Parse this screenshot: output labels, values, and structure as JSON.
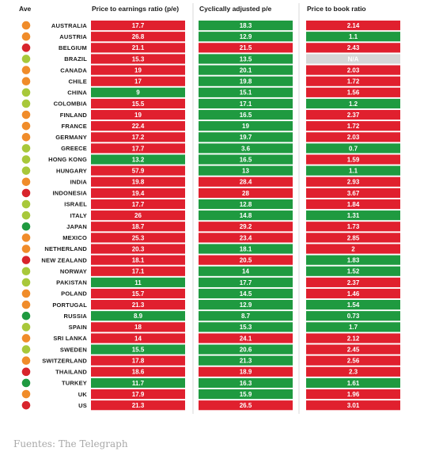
{
  "chart_data": {
    "type": "table",
    "headers": {
      "ave": "Ave",
      "pe": "Price to earnings ratio (p/e)",
      "cape": "Cyclically adjusted p/e",
      "pb": "Price to book ratio"
    },
    "colors": {
      "red": "#e0202e",
      "green": "#1f9a40",
      "na": "#d6d6d6",
      "dot_orange": "#f08c2a",
      "dot_green": "#a8c83a",
      "dot_red": "#d8242c",
      "dot_dark_green": "#1f9a40"
    },
    "rows": [
      {
        "country": "AUSTRALIA",
        "ave": "orange",
        "pe": "17.7",
        "pe_c": "red",
        "cape": "18.3",
        "cape_c": "green",
        "pb": "2.14",
        "pb_c": "red"
      },
      {
        "country": "AUSTRIA",
        "ave": "orange",
        "pe": "26.8",
        "pe_c": "red",
        "cape": "12.9",
        "cape_c": "green",
        "pb": "1.1",
        "pb_c": "green"
      },
      {
        "country": "BELGIUM",
        "ave": "red",
        "pe": "21.1",
        "pe_c": "red",
        "cape": "21.5",
        "cape_c": "red",
        "pb": "2.43",
        "pb_c": "red"
      },
      {
        "country": "BRAZIL",
        "ave": "green",
        "pe": "15.3",
        "pe_c": "red",
        "cape": "13.5",
        "cape_c": "green",
        "pb": "N/A",
        "pb_c": "na"
      },
      {
        "country": "CANADA",
        "ave": "orange",
        "pe": "19",
        "pe_c": "red",
        "cape": "20.1",
        "cape_c": "green",
        "pb": "2.03",
        "pb_c": "red"
      },
      {
        "country": "CHILE",
        "ave": "orange",
        "pe": "17",
        "pe_c": "red",
        "cape": "19.8",
        "cape_c": "green",
        "pb": "1.72",
        "pb_c": "red"
      },
      {
        "country": "CHINA",
        "ave": "green",
        "pe": "9",
        "pe_c": "green",
        "cape": "15.1",
        "cape_c": "green",
        "pb": "1.56",
        "pb_c": "red"
      },
      {
        "country": "COLOMBIA",
        "ave": "green",
        "pe": "15.5",
        "pe_c": "red",
        "cape": "17.1",
        "cape_c": "green",
        "pb": "1.2",
        "pb_c": "green"
      },
      {
        "country": "FINLAND",
        "ave": "orange",
        "pe": "19",
        "pe_c": "red",
        "cape": "16.5",
        "cape_c": "green",
        "pb": "2.37",
        "pb_c": "red"
      },
      {
        "country": "FRANCE",
        "ave": "orange",
        "pe": "22.4",
        "pe_c": "red",
        "cape": "19",
        "cape_c": "green",
        "pb": "1.72",
        "pb_c": "red"
      },
      {
        "country": "GERMANY",
        "ave": "orange",
        "pe": "17.2",
        "pe_c": "red",
        "cape": "19.7",
        "cape_c": "green",
        "pb": "2.03",
        "pb_c": "red"
      },
      {
        "country": "GREECE",
        "ave": "green",
        "pe": "17.7",
        "pe_c": "red",
        "cape": "3.6",
        "cape_c": "green",
        "pb": "0.7",
        "pb_c": "green"
      },
      {
        "country": "HONG KONG",
        "ave": "green",
        "pe": "13.2",
        "pe_c": "green",
        "cape": "16.5",
        "cape_c": "green",
        "pb": "1.59",
        "pb_c": "red"
      },
      {
        "country": "HUNGARY",
        "ave": "green",
        "pe": "57.9",
        "pe_c": "red",
        "cape": "13",
        "cape_c": "green",
        "pb": "1.1",
        "pb_c": "green"
      },
      {
        "country": "INDIA",
        "ave": "orange",
        "pe": "19.8",
        "pe_c": "red",
        "cape": "28.4",
        "cape_c": "red",
        "pb": "2.93",
        "pb_c": "red"
      },
      {
        "country": "INDONESIA",
        "ave": "red",
        "pe": "19.4",
        "pe_c": "red",
        "cape": "28",
        "cape_c": "red",
        "pb": "3.67",
        "pb_c": "red"
      },
      {
        "country": "ISRAEL",
        "ave": "green",
        "pe": "17.7",
        "pe_c": "red",
        "cape": "12.8",
        "cape_c": "green",
        "pb": "1.84",
        "pb_c": "red"
      },
      {
        "country": "ITALY",
        "ave": "green",
        "pe": "26",
        "pe_c": "red",
        "cape": "14.8",
        "cape_c": "green",
        "pb": "1.31",
        "pb_c": "green"
      },
      {
        "country": "JAPAN",
        "ave": "dark_green",
        "pe": "18.7",
        "pe_c": "red",
        "cape": "29.2",
        "cape_c": "red",
        "pb": "1.73",
        "pb_c": "red"
      },
      {
        "country": "MEXICO",
        "ave": "orange",
        "pe": "25.3",
        "pe_c": "red",
        "cape": "23.4",
        "cape_c": "red",
        "pb": "2.85",
        "pb_c": "red"
      },
      {
        "country": "NETHERLAND",
        "ave": "orange",
        "pe": "20.3",
        "pe_c": "red",
        "cape": "18.1",
        "cape_c": "green",
        "pb": "2",
        "pb_c": "red"
      },
      {
        "country": "NEW ZEALAND",
        "ave": "red",
        "pe": "18.1",
        "pe_c": "red",
        "cape": "20.5",
        "cape_c": "red",
        "pb": "1.83",
        "pb_c": "green"
      },
      {
        "country": "NORWAY",
        "ave": "green",
        "pe": "17.1",
        "pe_c": "red",
        "cape": "14",
        "cape_c": "green",
        "pb": "1.52",
        "pb_c": "green"
      },
      {
        "country": "PAKISTAN",
        "ave": "green",
        "pe": "11",
        "pe_c": "green",
        "cape": "17.7",
        "cape_c": "green",
        "pb": "2.37",
        "pb_c": "red"
      },
      {
        "country": "POLAND",
        "ave": "orange",
        "pe": "15.7",
        "pe_c": "red",
        "cape": "14.5",
        "cape_c": "green",
        "pb": "1.46",
        "pb_c": "red"
      },
      {
        "country": "PORTUGAL",
        "ave": "orange",
        "pe": "21.3",
        "pe_c": "red",
        "cape": "12.9",
        "cape_c": "green",
        "pb": "1.54",
        "pb_c": "green"
      },
      {
        "country": "RUSSIA",
        "ave": "dark_green",
        "pe": "8.9",
        "pe_c": "green",
        "cape": "8.7",
        "cape_c": "green",
        "pb": "0.73",
        "pb_c": "green"
      },
      {
        "country": "SPAIN",
        "ave": "green",
        "pe": "18",
        "pe_c": "red",
        "cape": "15.3",
        "cape_c": "green",
        "pb": "1.7",
        "pb_c": "green"
      },
      {
        "country": "SRI LANKA",
        "ave": "orange",
        "pe": "14",
        "pe_c": "red",
        "cape": "24.1",
        "cape_c": "red",
        "pb": "2.12",
        "pb_c": "red"
      },
      {
        "country": "SWEDEN",
        "ave": "green",
        "pe": "15.5",
        "pe_c": "green",
        "cape": "20.6",
        "cape_c": "green",
        "pb": "2.45",
        "pb_c": "red"
      },
      {
        "country": "SWITZERLAND",
        "ave": "orange",
        "pe": "17.8",
        "pe_c": "red",
        "cape": "21.3",
        "cape_c": "green",
        "pb": "2.56",
        "pb_c": "red"
      },
      {
        "country": "THAILAND",
        "ave": "red",
        "pe": "18.6",
        "pe_c": "red",
        "cape": "18.9",
        "cape_c": "red",
        "pb": "2.3",
        "pb_c": "red"
      },
      {
        "country": "TURKEY",
        "ave": "dark_green",
        "pe": "11.7",
        "pe_c": "green",
        "cape": "16.3",
        "cape_c": "green",
        "pb": "1.61",
        "pb_c": "green"
      },
      {
        "country": "UK",
        "ave": "orange",
        "pe": "17.9",
        "pe_c": "red",
        "cape": "15.9",
        "cape_c": "green",
        "pb": "1.96",
        "pb_c": "red"
      },
      {
        "country": "US",
        "ave": "red",
        "pe": "21.3",
        "pe_c": "red",
        "cape": "26.5",
        "cape_c": "red",
        "pb": "3.01",
        "pb_c": "red"
      }
    ]
  },
  "source": "Fuentes: The Telegraph"
}
